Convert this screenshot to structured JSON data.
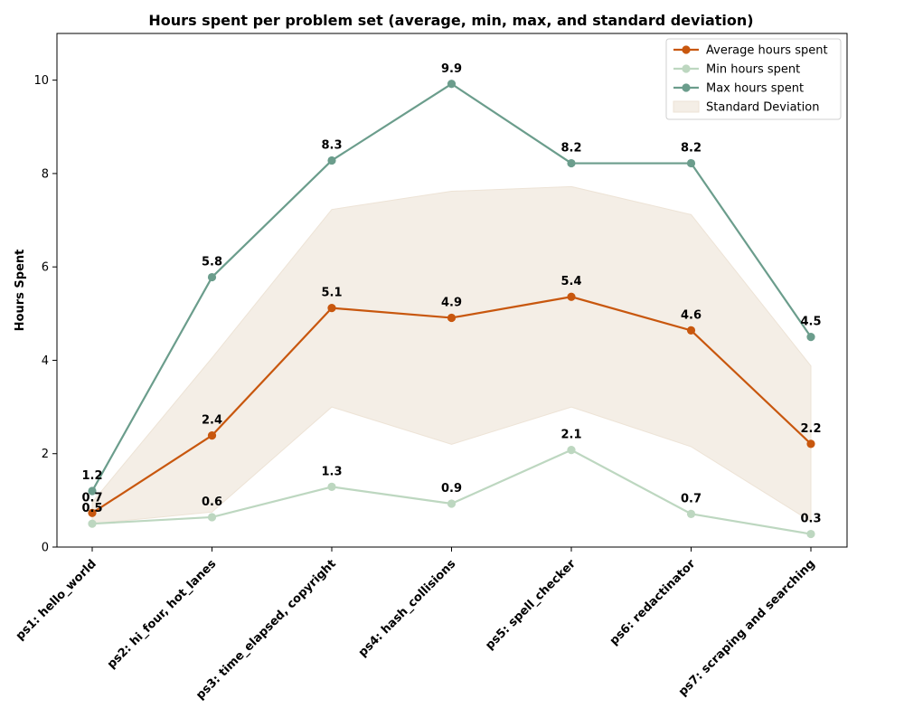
{
  "chart_data": {
    "type": "line",
    "title": "Hours spent per problem set (average, min, max, and standard deviation)",
    "xlabel": "",
    "ylabel": "Hours Spent",
    "ylim": [
      0,
      11
    ],
    "yticks": [
      0,
      2,
      4,
      6,
      8,
      10
    ],
    "grid": false,
    "legend_position": "top-right",
    "categories": [
      "ps1: hello_world",
      "ps2: hi_four, hot_lanes",
      "ps3: time_elapsed, copyright",
      "ps4: hash_collisions",
      "ps5: spell_checker",
      "ps6: redactinator",
      "ps7: scraping and searching"
    ],
    "series": [
      {
        "name": "Average hours spent",
        "values": [
          0.73,
          2.39,
          5.12,
          4.91,
          5.36,
          4.64,
          2.21
        ],
        "labels": [
          "0.7",
          "2.4",
          "5.1",
          "4.9",
          "5.4",
          "4.6",
          "2.2"
        ],
        "color": "#c8570e"
      },
      {
        "name": "Min hours spent",
        "values": [
          0.5,
          0.64,
          1.29,
          0.93,
          2.08,
          0.71,
          0.28
        ],
        "labels": [
          "0.5",
          "0.6",
          "1.3",
          "0.9",
          "2.1",
          "0.7",
          "0.3"
        ],
        "color": "#bdd7c0"
      },
      {
        "name": "Max hours spent",
        "values": [
          1.2,
          5.78,
          8.28,
          9.92,
          8.22,
          8.22,
          4.5
        ],
        "labels": [
          "1.2",
          "5.8",
          "8.3",
          "9.9",
          "8.2",
          "8.2",
          "4.5"
        ],
        "color": "#6b9d8c"
      }
    ],
    "std_band": {
      "name": "Standard Deviation",
      "lower": [
        0.5,
        0.75,
        3.0,
        2.2,
        3.0,
        2.15,
        0.55
      ],
      "upper": [
        0.96,
        4.05,
        7.23,
        7.62,
        7.72,
        7.12,
        3.88
      ],
      "color": "#f4eee6",
      "edge_color": "#ede3d6"
    }
  }
}
